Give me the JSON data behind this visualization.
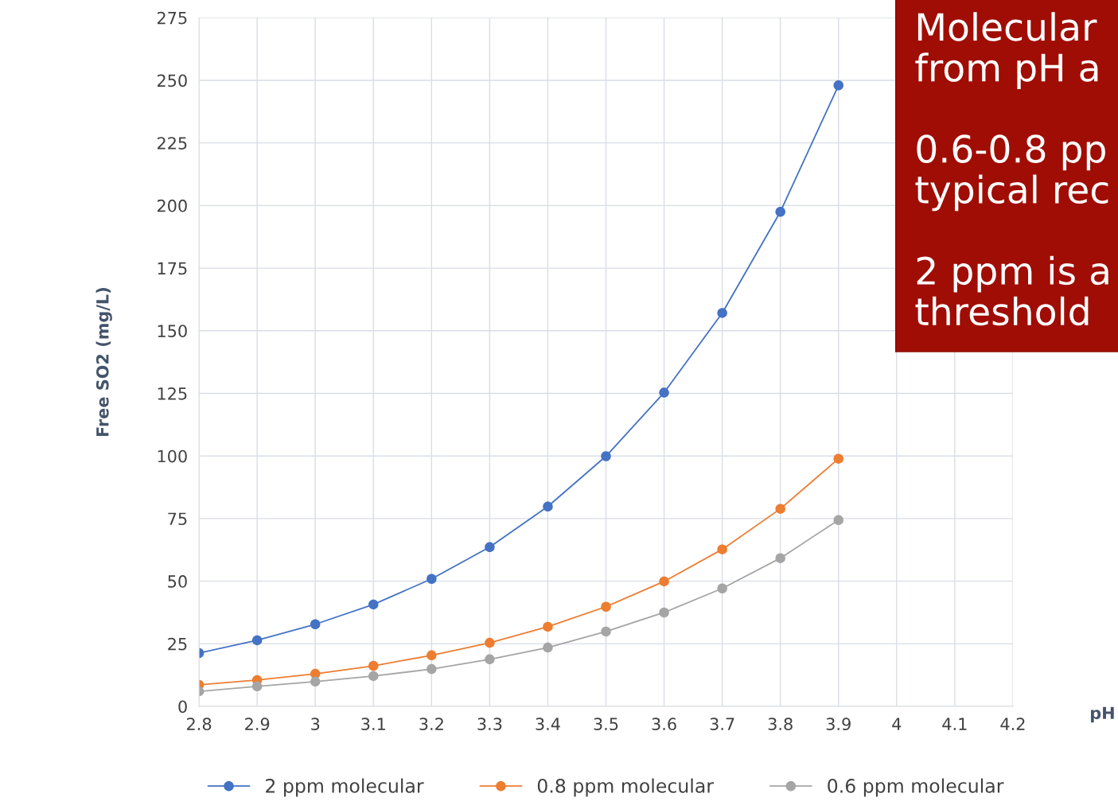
{
  "chart_data": {
    "type": "line",
    "xlabel": "pH",
    "ylabel": "Free SO2 (mg/L)",
    "x": [
      2.8,
      2.9,
      3.0,
      3.1,
      3.2,
      3.3,
      3.4,
      3.5,
      3.6,
      3.7,
      3.8,
      3.9
    ],
    "series": [
      {
        "name": "2 ppm molecular",
        "color": "#4472c4",
        "values": [
          21.3,
          26.4,
          32.8,
          40.7,
          50.9,
          63.6,
          79.8,
          99.9,
          125.3,
          157.1,
          197.5,
          248
        ]
      },
      {
        "name": "0.8 ppm molecular",
        "color": "#ed7d31",
        "values": [
          8.6,
          10.5,
          13.0,
          16.2,
          20.4,
          25.4,
          31.8,
          39.8,
          49.9,
          62.7,
          78.9,
          98.9
        ]
      },
      {
        "name": "0.6 ppm molecular",
        "color": "#a5a5a5",
        "values": [
          6.0,
          8.0,
          9.9,
          12.1,
          14.9,
          18.8,
          23.5,
          29.9,
          37.5,
          47.1,
          59.2,
          74.4
        ]
      }
    ],
    "xlim": [
      2.8,
      4.2
    ],
    "xticks": [
      2.8,
      2.9,
      3,
      3.1,
      3.2,
      3.3,
      3.4,
      3.5,
      3.6,
      3.7,
      3.8,
      3.9,
      4,
      4.1,
      4.2
    ],
    "ylim": [
      0,
      275
    ],
    "yticks": [
      0,
      25,
      50,
      75,
      100,
      125,
      150,
      175,
      200,
      225,
      250,
      275
    ],
    "grid": true,
    "legend": "bottom",
    "marker": "circle",
    "line_style": "solid",
    "annotations": [
      "Molecular\nfrom pH a\n\n0.6-0.8 pp\ntypical rec\n\n2 ppm is a\nthreshold"
    ]
  }
}
